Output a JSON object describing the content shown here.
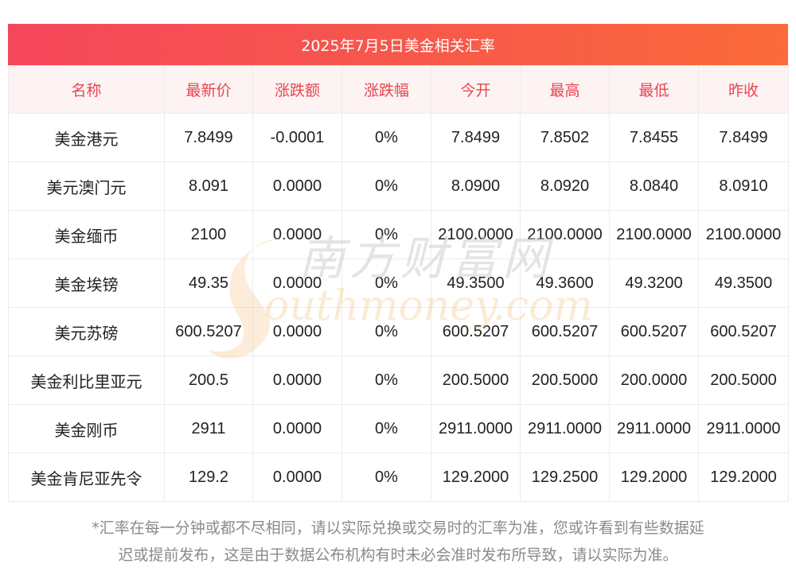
{
  "title": "2025年7月5日美金相关汇率",
  "columns": [
    "名称",
    "最新价",
    "涨跌额",
    "涨跌幅",
    "今开",
    "最高",
    "最低",
    "昨收"
  ],
  "rows": [
    [
      "美金港元",
      "7.8499",
      "-0.0001",
      "0%",
      "7.8499",
      "7.8502",
      "7.8455",
      "7.8499"
    ],
    [
      "美元澳门元",
      "8.091",
      "0.0000",
      "0%",
      "8.0900",
      "8.0920",
      "8.0840",
      "8.0910"
    ],
    [
      "美金缅币",
      "2100",
      "0.0000",
      "0%",
      "2100.0000",
      "2100.0000",
      "2100.0000",
      "2100.0000"
    ],
    [
      "美金埃镑",
      "49.35",
      "0.0000",
      "0%",
      "49.3500",
      "49.3600",
      "49.3200",
      "49.3500"
    ],
    [
      "美元苏磅",
      "600.5207",
      "0.0000",
      "0%",
      "600.5207",
      "600.5207",
      "600.5207",
      "600.5207"
    ],
    [
      "美金利比里亚元",
      "200.5",
      "0.0000",
      "0%",
      "200.5000",
      "200.5000",
      "200.0000",
      "200.5000"
    ],
    [
      "美金刚币",
      "2911",
      "0.0000",
      "0%",
      "2911.0000",
      "2911.0000",
      "2911.0000",
      "2911.0000"
    ],
    [
      "美金肯尼亚先令",
      "129.2",
      "0.0000",
      "0%",
      "129.2000",
      "129.2500",
      "129.2000",
      "129.2000"
    ]
  ],
  "watermark": {
    "cn": "南方财富网",
    "en": "outhmoney.com"
  },
  "footnote": {
    "line1": "*汇率在每一分钟或都不尽相同，请以实际兑换或交易时的汇率为准，您或许看到有些数据延",
    "line2": "迟或提前发布，这是由于数据公布机构有时未必会准时发布所导致，请以实际为准。"
  },
  "colors": {
    "title_bar_start": "#f5475b",
    "title_bar_end": "#fb6a3a",
    "header_text": "#e8454f",
    "header_bg": "#fdf3f3"
  }
}
